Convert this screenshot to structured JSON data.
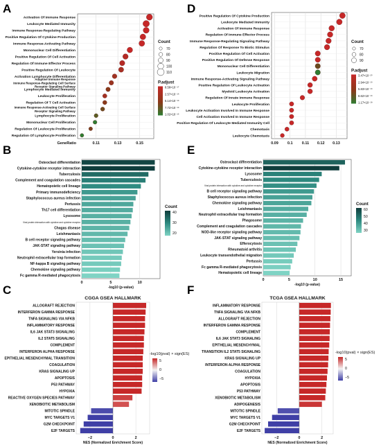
{
  "colors": {
    "dot_high": "#c62828",
    "dot_mid": "#8a3a1a",
    "dot_low": "#2e7d32",
    "teal_dark": "#0f3d3c",
    "teal_mid": "#2e8a80",
    "teal_light": "#7fd3c4",
    "red_bar": "#c62828",
    "red_light": "#e79b9b",
    "blue_bar": "#3f3fa6",
    "blue_light": "#a3a6d6",
    "grid": "#d6d6d6"
  },
  "chart_data": [
    {
      "panel": "A",
      "type": "scatter",
      "xlabel": "GeneRatio",
      "xticks": [
        0.11,
        0.13,
        0.15
      ],
      "xlim": [
        0.093,
        0.163
      ],
      "categories": [
        "Activation Of Immune Response",
        "Leukocyte Mediated Immunity",
        "Immune Response-Regulating Pathway",
        "Positive Regulation Of Cytokine Production",
        "Immune Response-Activating Pathway",
        "Mononuclear Cell Differentiation",
        "Positive Regulation Of Cell Activation",
        "Regulation Of Immune Effector Process",
        "Positive Regulation Of Leukocyte",
        "Activation Lymphocyte Differentiation",
        "Adaptive Immune Response\nImmune Response-Regulating Cell Surface\nReceptor Signaling Pathway",
        "Lymphocyte Mediated Immunity",
        "Leukocyte Proliferation",
        "Regulation Of T Cell Activation",
        "Immune Response-Activating Cell Surface\nReceptor Signaling Pathway",
        "Lymphocyte Proliferation",
        "Mononuclear Cell Proliferation",
        "Regulation Of Leukocyte Proliferation",
        "Regulation Of Lymphocyte Proliferation"
      ],
      "x": [
        0.159,
        0.156,
        0.156,
        0.153,
        0.152,
        0.141,
        0.137,
        0.134,
        0.133,
        0.127,
        0.124,
        0.121,
        0.118,
        0.118,
        0.116,
        0.11,
        0.109,
        0.105,
        0.097
      ],
      "count": [
        100,
        105,
        98,
        95,
        95,
        92,
        90,
        88,
        86,
        80,
        78,
        76,
        74,
        73,
        72,
        70,
        69,
        67,
        66
      ],
      "padj": [
        8.6e-17,
        9e-17,
        1.2e-16,
        1.5e-16,
        2e-16,
        2.6e-16,
        3e-16,
        3.5e-16,
        4e-16,
        4.5e-16,
        5e-16,
        5.5e-16,
        6e-16,
        6.5e-16,
        7e-16,
        8e-16,
        8.5e-16,
        9e-16,
        1e-15
      ],
      "dot_color": [
        "#c62828",
        "#c62828",
        "#c62828",
        "#c62828",
        "#c62828",
        "#c62828",
        "#b52a25",
        "#b52a25",
        "#a83024",
        "#a03222",
        "#9a3420",
        "#8a3a1a",
        "#a33122",
        "#8a3a1a",
        "#6e4c1e",
        "#5a5d22",
        "#2e7d32",
        "#7a3f1c",
        "#2e7d32"
      ],
      "legend_count_title": "Count",
      "legend_count_values": [
        "70",
        "80",
        "90",
        "100",
        "110"
      ],
      "legend_padj_title": "P.adjust",
      "legend_padj_labels": [
        "8.58×10⁻¹⁷",
        "2.57×10⁻¹⁶",
        "5.14×10⁻¹⁶",
        "7.72×10⁻¹⁶",
        "1.02×10⁻¹⁵"
      ]
    },
    {
      "panel": "D",
      "type": "scatter",
      "xlabel": "",
      "xticks": [
        0.09,
        0.1,
        0.11,
        0.12,
        0.13
      ],
      "xlim": [
        0.088,
        0.137
      ],
      "categories": [
        "Positive Regulation Of Cytokine Production",
        "Leukocyte Mediated Immunity",
        "Activation Of Immune Response",
        "Regulation Of Immune Effector Process",
        "Immune Response-Regulating Signaling Pathway",
        "Regulation Of Response To Biotic Stimulus",
        "Positive Regulation Of Cell Activation",
        "Positive Regulation Of Defense Response",
        "Mononuclear Cell Differentiation",
        "Leukocyte Migration",
        "Immune Response-Activating Signaling Pathway",
        "Positive Regulation Of Leukocyte Activation",
        "Myeloid Leukocyte Activation",
        "Regulation Of Innate Immune Response",
        "Leukocyte Proliferation",
        "Leukocyte Activation Involved In Immune Response",
        "Cell Activation Involved In Immune Response",
        "Positive Regulation Of Leukocyte Mediated Immunity Cell",
        "Chemotaxis",
        "Leukocyte Chemotaxis"
      ],
      "x": [
        0.134,
        0.132,
        0.127,
        0.126,
        0.125,
        0.124,
        0.118,
        0.118,
        0.118,
        0.118,
        0.116,
        0.113,
        0.113,
        0.108,
        0.101,
        0.101,
        0.101,
        0.101,
        0.098,
        0.095
      ],
      "count": [
        95,
        94,
        92,
        91,
        90,
        90,
        88,
        87,
        87,
        87,
        85,
        82,
        82,
        79,
        75,
        75,
        75,
        75,
        73,
        71
      ],
      "padj": [
        3.5e-20,
        4e-20,
        5e-20,
        6e-20,
        7e-20,
        8e-20,
        9e-20,
        1e-19,
        1.1e-19,
        1.17e-18,
        2e-19,
        3e-19,
        4e-19,
        5e-19,
        6e-19,
        7e-19,
        8e-19,
        9e-19,
        1e-18,
        1.1e-18
      ],
      "dot_color": [
        "#c62828",
        "#c62828",
        "#c62828",
        "#c62828",
        "#c62828",
        "#c62828",
        "#c62828",
        "#c62828",
        "#6a4a1e",
        "#2e7d32",
        "#c62828",
        "#c62828",
        "#c62828",
        "#c62828",
        "#c62828",
        "#c62828",
        "#c62828",
        "#c62828",
        "#c62828",
        "#c62828"
      ],
      "legend_count_title": "Count",
      "legend_count_values": [
        "70",
        "80",
        "90"
      ],
      "legend_padj_title": "P.adjust",
      "legend_padj_labels": [
        "3.47×10⁻²⁰",
        "2.94×10⁻¹⁹",
        "5.83×10⁻¹⁹",
        "8.62×10⁻¹⁹",
        "1.17×10⁻¹⁸"
      ]
    },
    {
      "panel": "B",
      "type": "bar",
      "orientation": "horizontal",
      "xlabel": "-log10 (p-value)",
      "xticks": [
        0,
        5,
        10
      ],
      "xlim": [
        0,
        13.5
      ],
      "categories": [
        "Osteoclast differentiation",
        "Cytokine-cytokine receptor interaction",
        "Tuberculosis",
        "Complement and coagulation cascades",
        "Hematopoietic cell lineage",
        "Primary immunodeficiency",
        "Staphylococcus aureus infection",
        "Pertussis",
        "Th17 cell differentiation",
        "Lysosome",
        "Viral protein interaction with cytokine and cytokine receptor",
        "Chagas disease",
        "Leishmaniasis",
        "B cell receptor signaling pathway",
        "JAK-STAT signaling pathway",
        "Yersinia infection",
        "Neutrophil extracellular trap formation",
        "NF-kappa B signaling pathway",
        "Chemokine signaling pathway",
        "Fc gamma R-mediated phagocytosis"
      ],
      "values": [
        12.6,
        12.6,
        11.5,
        11.0,
        10.2,
        9.6,
        9.3,
        8.9,
        8.8,
        8.6,
        8.4,
        8.2,
        7.9,
        7.5,
        7.3,
        7.1,
        6.9,
        6.8,
        6.6,
        6.5
      ],
      "counts": [
        48,
        50,
        40,
        36,
        33,
        30,
        28,
        27,
        26,
        25,
        25,
        24,
        23,
        22,
        21,
        20,
        19,
        19,
        18,
        17
      ],
      "legend_title": "Count",
      "legend_ticks": [
        "40",
        "30",
        "20"
      ]
    },
    {
      "panel": "E",
      "type": "bar",
      "orientation": "horizontal",
      "xlabel": "-log10 (p-value)",
      "xticks": [
        0,
        5,
        10,
        15
      ],
      "xlim": [
        0,
        17
      ],
      "categories": [
        "Osteoclast differentiation",
        "Cytokine-cytokine receptor interaction",
        "Lysosome",
        "Tuberculosis",
        "Viral protein interaction with cytokine and cytokine receptor",
        "B cell receptor signaling pathway",
        "Staphylococcus aureus infection",
        "Chemokine signaling pathway",
        "Leishmaniasis",
        "Neutrophil extracellular trap formation",
        "Phagosome",
        "Complement and coagulation cascades",
        "NOD-like receptor signaling pathway",
        "JAK-STAT signaling pathway",
        "Efferocytosis",
        "Rheumatoid arthritis",
        "Leukocyte transendothelial migration",
        "Pertussis",
        "Fc gamma R-mediated phagocytosis",
        "Hematopoietic cell lineage"
      ],
      "values": [
        15.8,
        14.7,
        11.3,
        10.8,
        10.3,
        9.8,
        9.5,
        9.3,
        8.7,
        8.4,
        7.7,
        7.3,
        7.2,
        7.0,
        6.6,
        6.3,
        5.9,
        5.6,
        5.3,
        5.1
      ],
      "counts": [
        50,
        60,
        42,
        40,
        38,
        35,
        33,
        32,
        30,
        29,
        28,
        27,
        26,
        25,
        24,
        23,
        22,
        21,
        20,
        19
      ],
      "legend_title": "Count",
      "legend_ticks": [
        "60",
        "50",
        "40",
        "30"
      ]
    },
    {
      "panel": "C",
      "type": "bar",
      "orientation": "horizontal",
      "title": "CGGA GSEA HALLMARK",
      "xlabel": "NES (Normalized Enrichment Score)",
      "xticks": [
        -2,
        0,
        2
      ],
      "xlim": [
        -3.2,
        3.2
      ],
      "categories": [
        "ALLOGRAFT REJECTION",
        "INTERFERON GAMMA RESPONSE",
        "TNFA SIGNALING VIA NFKB",
        "INFLAMMATORY RESPONSE",
        "IL6 JAK STAT3 SIGNALING",
        "IL2 STAT5 SIGNALING",
        "COMPLEMENT",
        "INTERFERON ALPHA RESPONSE",
        "EPITHELIAL MESENCHYMAL TRANSITION",
        "COAGULATION",
        "KRAS SIGNALING UP",
        "APOPTOSIS",
        "P53 PATHWAY",
        "HYPOXIA",
        "REACTIVE OXYGEN SPECIES PATHWAY",
        "XENOBIOTIC METABOLISM",
        "MITOTIC SPINDLE",
        "MYC TARGETS V1",
        "G2M CHECKPOINT",
        "E2F TARGETS"
      ],
      "values": [
        2.9,
        2.85,
        2.8,
        2.8,
        2.75,
        2.7,
        2.7,
        2.65,
        2.6,
        2.6,
        2.6,
        2.55,
        2.55,
        2.5,
        1.7,
        1.4,
        -1.9,
        -2.2,
        -2.55,
        -2.85
      ],
      "legend_title": "-log10(pval) × sign(ES)",
      "legend_ticks": [
        "5",
        "0",
        "−5"
      ]
    },
    {
      "panel": "F",
      "type": "bar",
      "orientation": "horizontal",
      "title": "TCGA GSEA HALLMARK",
      "xlabel": "NES (Normalized Enrichment Score)",
      "xticks": [
        -2,
        0,
        2
      ],
      "xlim": [
        -3.3,
        3.0
      ],
      "categories": [
        "INFLAMMATORY RESPONSE",
        "TNFA SIGNALING VIA NFKB",
        "ALLOGRAFT REJECTION",
        "INTERFERON GAMMA RESPONSE",
        "COMPLEMENT",
        "IL6 JAK STAT3 SIGNALING",
        "EPITHELIAL MESENCHYMAL",
        "TRANSITION  IL2  STAT5  SIGNALING",
        "KRAS SIGNALING UP",
        "INTERFERON ALPHA RESPONSE",
        "COAGULATION",
        "HYPOXIA",
        "APOPTOSIS",
        "P53 PATHWAY",
        "XENOBIOTIC METABOLISM",
        "ADIPOGENESIS",
        "MITOTIC SPINDLE",
        "MYC TARGETS V1",
        "G2M CHECKPOINT",
        "E2F TARGETS"
      ],
      "values": [
        2.8,
        2.78,
        2.75,
        2.72,
        2.7,
        2.68,
        2.65,
        2.6,
        2.58,
        2.55,
        2.5,
        2.45,
        2.4,
        2.35,
        2.3,
        2.0,
        -1.9,
        -2.4,
        -2.75,
        -3.05
      ],
      "legend_title": "-log10(pval) × sign(ES)",
      "legend_ticks": [
        "5",
        "0",
        "−5"
      ]
    }
  ],
  "panels": {
    "A": "A",
    "B": "B",
    "C": "C",
    "D": "D",
    "E": "E",
    "F": "F"
  }
}
